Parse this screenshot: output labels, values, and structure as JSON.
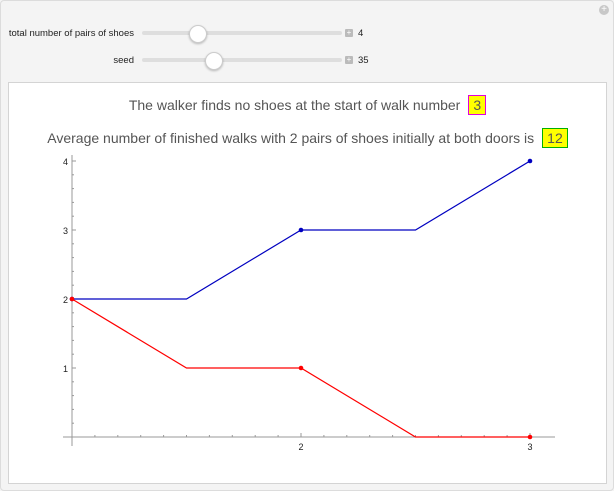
{
  "controls": [
    {
      "label": "total number of pairs of shoes",
      "value": "4",
      "fraction": 0.27
    },
    {
      "label": "seed",
      "value": "35",
      "fraction": 0.35
    }
  ],
  "output": {
    "line1": "The walker finds no shoes at the start of walk number",
    "line1_value": "3",
    "line1_box_border": "#e000e0",
    "line2": "Average number of finished walks with 2 pairs of shoes initially at both doors is",
    "line2_value": "12",
    "line2_box_border": "#00b000"
  },
  "chart_data": {
    "type": "line",
    "xlim": [
      1,
      3
    ],
    "ylim": [
      0,
      4
    ],
    "xticks": [
      "2",
      "3"
    ],
    "yticks": [
      "1",
      "2",
      "3",
      "4"
    ],
    "series": [
      {
        "color": "#0000c0",
        "x": [
          1,
          1.5,
          2,
          2.5,
          3
        ],
        "y": [
          2,
          2,
          3,
          3,
          4
        ],
        "marked_x": [
          1,
          2,
          3
        ]
      },
      {
        "color": "#ff0000",
        "x": [
          1,
          1.5,
          2,
          2.5,
          3
        ],
        "y": [
          2,
          1,
          1,
          0,
          0
        ],
        "marked_x": [
          1,
          2,
          3
        ]
      }
    ]
  }
}
